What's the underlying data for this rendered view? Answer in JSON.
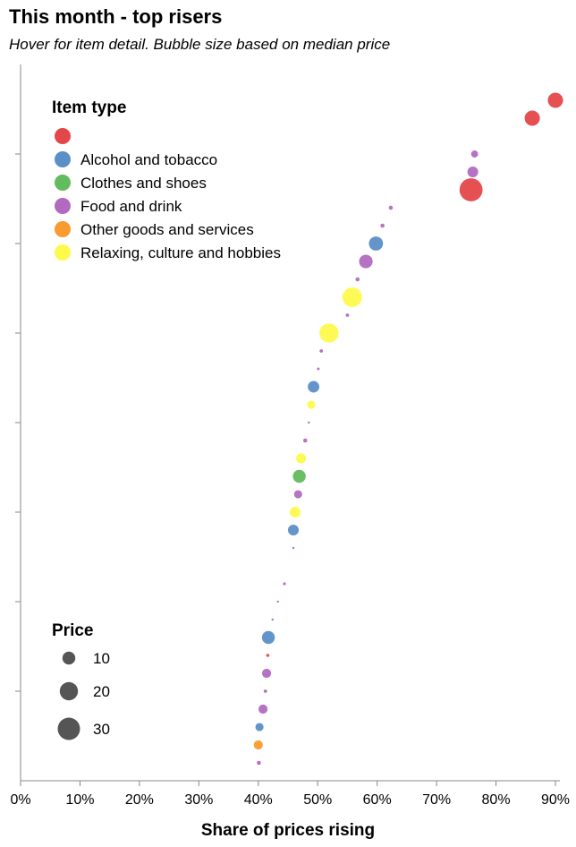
{
  "chart_data": {
    "type": "scatter",
    "title": "This month - top risers",
    "subtitle": "Hover for item detail. Bubble size based on median price",
    "xlabel": "Share of prices rising",
    "ylabel": "",
    "xlim": [
      0,
      90
    ],
    "x_ticks": [
      "0%",
      "10%",
      "20%",
      "30%",
      "40%",
      "50%",
      "60%",
      "70%",
      "80%",
      "90%"
    ],
    "x_tick_values": [
      0,
      10,
      20,
      30,
      40,
      50,
      60,
      70,
      80,
      90
    ],
    "y_rank_count": 37,
    "y_tick_every": 5,
    "grid": false,
    "legend_item_type": {
      "title": "Item type",
      "placement": "top-left",
      "entries": [
        {
          "label": "",
          "color": "#e4474a"
        },
        {
          "label": "Alcohol and tobacco",
          "color": "#5b8fc7"
        },
        {
          "label": "Clothes and shoes",
          "color": "#62bb5d"
        },
        {
          "label": "Food and drink",
          "color": "#b26ac0"
        },
        {
          "label": "Other goods and services",
          "color": "#f99b30"
        },
        {
          "label": "Relaxing, culture and hobbies",
          "color": "#fdfa4c"
        }
      ]
    },
    "legend_price": {
      "title": "Price",
      "placement": "bottom-left",
      "entries": [
        {
          "label": "10",
          "value": 10
        },
        {
          "label": "20",
          "value": 20
        },
        {
          "label": "30",
          "value": 30
        }
      ]
    },
    "points": [
      {
        "rank": 0,
        "x": 90.0,
        "price": 14,
        "type": 0
      },
      {
        "rank": 1,
        "x": 86.1,
        "price": 14,
        "type": 0
      },
      {
        "rank": 3,
        "x": 76.4,
        "price": 3,
        "type": 3
      },
      {
        "rank": 4,
        "x": 76.1,
        "price": 7,
        "type": 3
      },
      {
        "rank": 5,
        "x": 75.8,
        "price": 32,
        "type": 0
      },
      {
        "rank": 6,
        "x": 62.3,
        "price": 1,
        "type": 3
      },
      {
        "rank": 7,
        "x": 60.9,
        "price": 1,
        "type": 3
      },
      {
        "rank": 8,
        "x": 59.8,
        "price": 12,
        "type": 1
      },
      {
        "rank": 9,
        "x": 58.1,
        "price": 11,
        "type": 3
      },
      {
        "rank": 10,
        "x": 56.7,
        "price": 1,
        "type": 3
      },
      {
        "rank": 11,
        "x": 55.8,
        "price": 23,
        "type": 5
      },
      {
        "rank": 12,
        "x": 55.0,
        "price": 0.7,
        "type": 3
      },
      {
        "rank": 13,
        "x": 51.9,
        "price": 22,
        "type": 5
      },
      {
        "rank": 14,
        "x": 50.6,
        "price": 0.7,
        "type": 3
      },
      {
        "rank": 15,
        "x": 50.1,
        "price": 0.4,
        "type": 3
      },
      {
        "rank": 16,
        "x": 49.3,
        "price": 8,
        "type": 1
      },
      {
        "rank": 17,
        "x": 48.9,
        "price": 4,
        "type": 5
      },
      {
        "rank": 18,
        "x": 48.5,
        "price": 0.2,
        "type": 3
      },
      {
        "rank": 19,
        "x": 47.9,
        "price": 1,
        "type": 3
      },
      {
        "rank": 20,
        "x": 47.2,
        "price": 6,
        "type": 5
      },
      {
        "rank": 21,
        "x": 46.9,
        "price": 10,
        "type": 2
      },
      {
        "rank": 22,
        "x": 46.7,
        "price": 4,
        "type": 3
      },
      {
        "rank": 23,
        "x": 46.2,
        "price": 7,
        "type": 5
      },
      {
        "rank": 24,
        "x": 45.9,
        "price": 7,
        "type": 1
      },
      {
        "rank": 25,
        "x": 45.9,
        "price": 0.3,
        "type": 3
      },
      {
        "rank": 27,
        "x": 44.4,
        "price": 0.5,
        "type": 3
      },
      {
        "rank": 28,
        "x": 43.3,
        "price": 0.2,
        "type": 3
      },
      {
        "rank": 29,
        "x": 42.4,
        "price": 0.3,
        "type": 3
      },
      {
        "rank": 30,
        "x": 41.7,
        "price": 10,
        "type": 1
      },
      {
        "rank": 31,
        "x": 41.6,
        "price": 0.6,
        "type": 0
      },
      {
        "rank": 32,
        "x": 41.4,
        "price": 5,
        "type": 3
      },
      {
        "rank": 33,
        "x": 41.2,
        "price": 0.7,
        "type": 3
      },
      {
        "rank": 34,
        "x": 40.8,
        "price": 5,
        "type": 3
      },
      {
        "rank": 35,
        "x": 40.2,
        "price": 4,
        "type": 1
      },
      {
        "rank": 36,
        "x": 40.0,
        "price": 5,
        "type": 4
      },
      {
        "rank": 37,
        "x": 40.1,
        "price": 1,
        "type": 3
      }
    ]
  }
}
